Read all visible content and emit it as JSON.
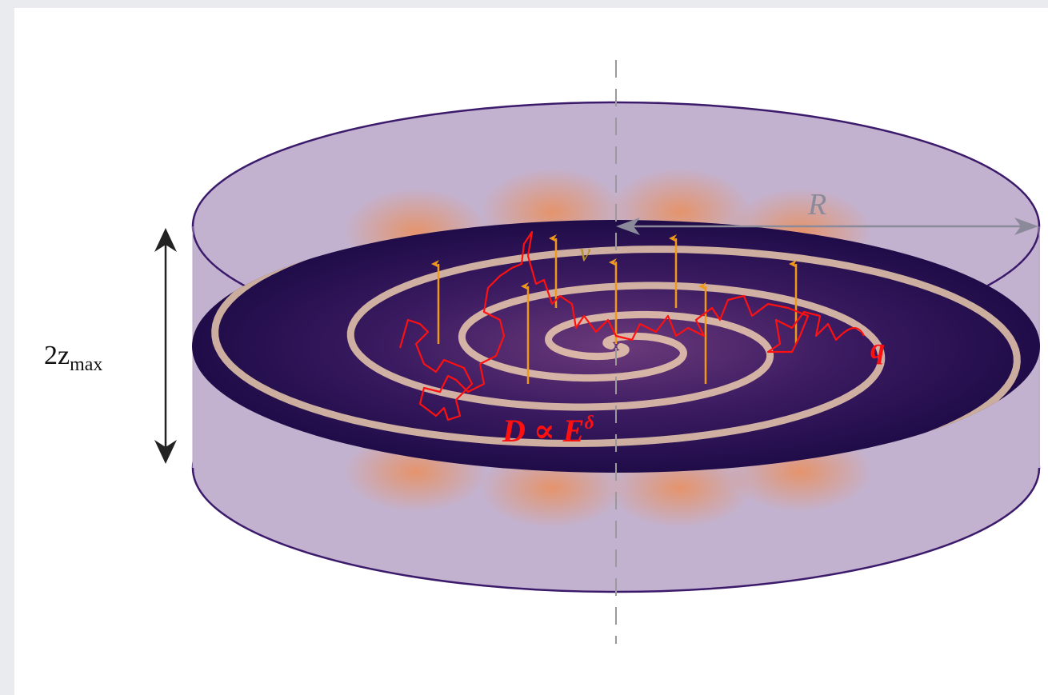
{
  "labels": {
    "height": {
      "base": "2z",
      "sub": "max"
    },
    "radius": "R",
    "velocity": "v⃗",
    "diffusion": {
      "base": "D ∝ E",
      "sup": "δ"
    },
    "source": "q"
  }
}
